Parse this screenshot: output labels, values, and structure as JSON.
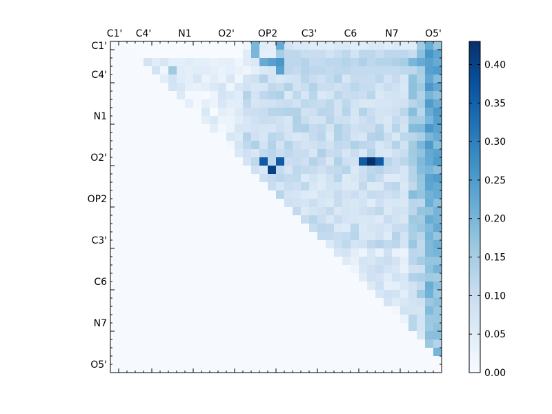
{
  "chart_data": {
    "type": "heatmap",
    "title": "",
    "xlabel": "",
    "ylabel": "",
    "size": 40,
    "x_tick_labels": [
      "C1'",
      "C4'",
      "N1",
      "O2'",
      "OP2",
      "C3'",
      "C6",
      "N7",
      "O5'"
    ],
    "y_tick_labels": [
      "C1'",
      "C4'",
      "N1",
      "O2'",
      "OP2",
      "C3'",
      "C6",
      "N7",
      "O5'"
    ],
    "label_indices": [
      0,
      5,
      10,
      15,
      20,
      25,
      30,
      35,
      40
    ],
    "label_positions": [
      0.5,
      5,
      10,
      15,
      20,
      25,
      30,
      35,
      40
    ],
    "colorbar": {
      "min": 0.0,
      "max": 0.43,
      "ticks": [
        "0.00",
        "0.05",
        "0.10",
        "0.15",
        "0.20",
        "0.25",
        "0.30",
        "0.35",
        "0.40"
      ],
      "colormap": "Blues"
    },
    "grid": false,
    "matrix_note_rows": [
      [
        0,
        0,
        0,
        0,
        0,
        0,
        0,
        0,
        0,
        0,
        0,
        0,
        0,
        0,
        0,
        0,
        0.02,
        0.2,
        0.05,
        0.04,
        0.22,
        0.08,
        0.06,
        0.06,
        0.05,
        0.05,
        0.05,
        0.06,
        0.06,
        0.05,
        0.05,
        0.06,
        0.06,
        0.05,
        0.06,
        0.05,
        0.05,
        0.16,
        0.22,
        0.17
      ],
      [
        0,
        0,
        0,
        0,
        0,
        0,
        0,
        0,
        0,
        0,
        0,
        0,
        0,
        0,
        0,
        0,
        0.05,
        0.2,
        0.04,
        0.04,
        0.15,
        0.12,
        0.12,
        0.1,
        0.1,
        0.1,
        0.08,
        0.1,
        0.12,
        0.08,
        0.12,
        0.12,
        0.1,
        0.12,
        0.12,
        0.12,
        0.1,
        0.18,
        0.26,
        0.23
      ],
      [
        0,
        0,
        0,
        0.02,
        0.08,
        0.05,
        0.07,
        0.04,
        0.04,
        0.05,
        0.04,
        0.04,
        0.03,
        0.04,
        0.04,
        0.02,
        0.05,
        0.06,
        0.22,
        0.24,
        0.26,
        0.12,
        0.12,
        0.13,
        0.11,
        0.11,
        0.12,
        0.12,
        0.13,
        0.12,
        0.14,
        0.12,
        0.13,
        0.13,
        0.14,
        0.15,
        0.2,
        0.22,
        0.24,
        0.22
      ],
      [
        0,
        0,
        0,
        0,
        0,
        0.08,
        0.02,
        0.16,
        0.05,
        0.04,
        0.05,
        0.05,
        0.04,
        0.03,
        0.04,
        0.03,
        0.02,
        0.04,
        0.06,
        0.07,
        0.24,
        0.12,
        0.11,
        0.13,
        0.12,
        0.12,
        0.11,
        0.12,
        0.12,
        0.11,
        0.11,
        0.11,
        0.11,
        0.11,
        0.11,
        0.12,
        0.12,
        0.15,
        0.24,
        0.25
      ]
    ]
  }
}
